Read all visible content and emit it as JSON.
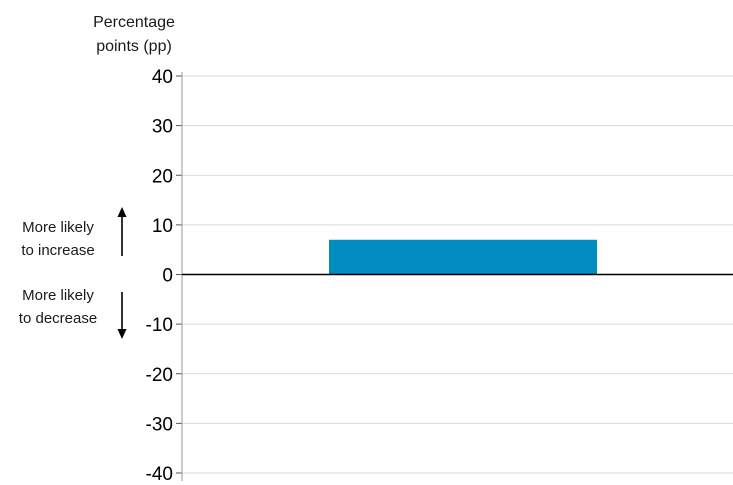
{
  "chart_data": {
    "type": "bar",
    "ylabel": [
      "Percentage",
      "points (pp)"
    ],
    "ylim": [
      -40,
      40
    ],
    "yticks": [
      40,
      30,
      20,
      10,
      0,
      -10,
      -20,
      -30,
      -40
    ],
    "categories": [
      ""
    ],
    "values": [
      7
    ],
    "grid": true,
    "bar_color": "#008CBF",
    "annotations": {
      "up": [
        "More likely",
        "to increase"
      ],
      "down": [
        "More likely",
        "to decrease"
      ]
    }
  }
}
